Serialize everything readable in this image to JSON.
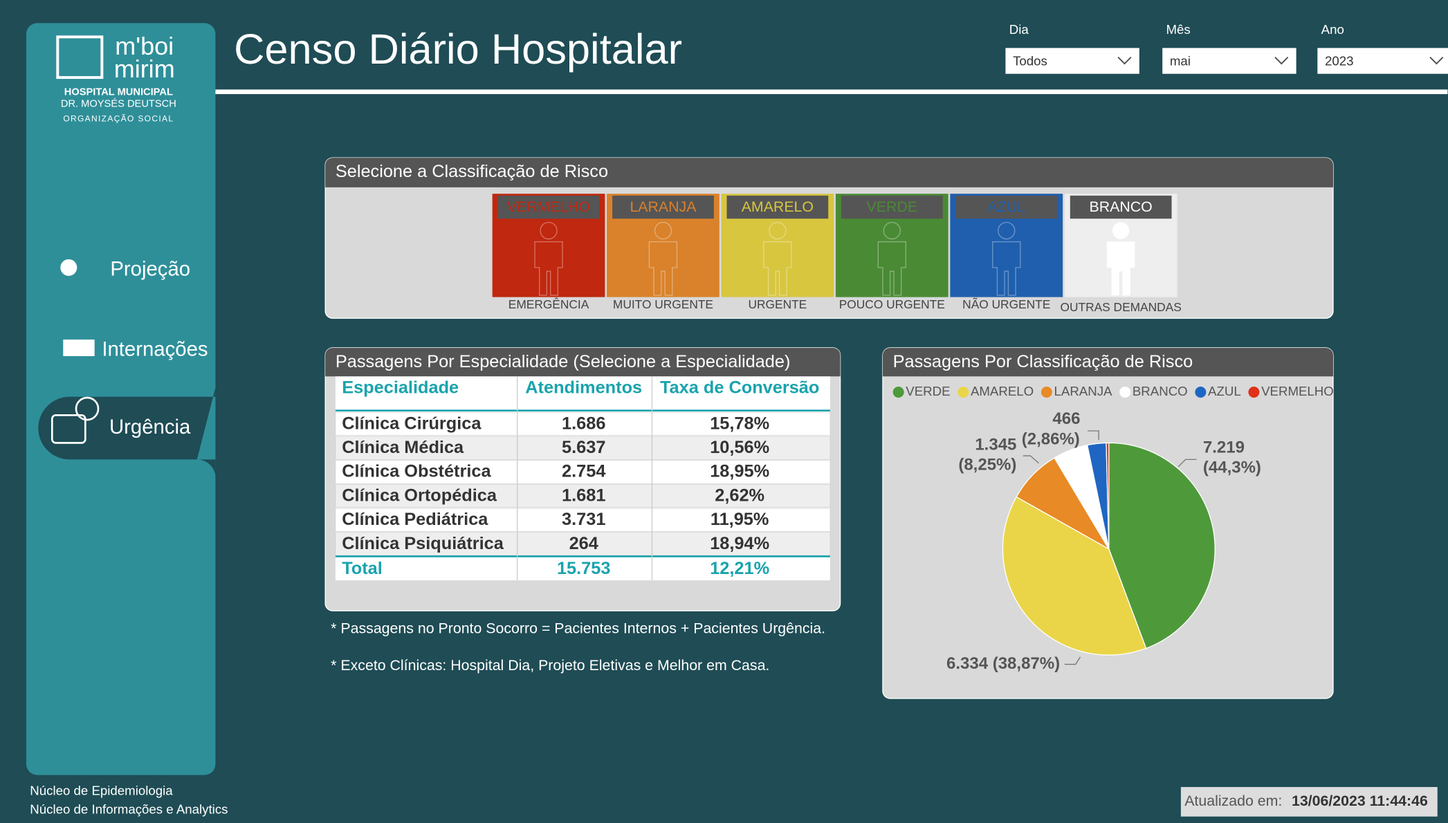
{
  "header": {
    "title": "Censo Diário Hospitalar"
  },
  "filters": [
    {
      "label": "Dia",
      "value": "Todos"
    },
    {
      "label": "Mês",
      "value": "mai"
    },
    {
      "label": "Ano",
      "value": "2023"
    }
  ],
  "sidebar": {
    "logo": [
      "m'boi",
      "mirim",
      "HOSPITAL MUNICIPAL",
      "DR. MOYSÉS DEUTSCH",
      "ORGANIZAÇÃO SOCIAL"
    ],
    "nav": [
      "Projeção",
      "Internações",
      "Urgência"
    ],
    "footer": [
      "Núcleo de Epidemiologia",
      "Núcleo de Informações e Analytics"
    ]
  },
  "risk_selector": {
    "title": "Selecione a Classificação de Risco",
    "items": [
      {
        "label": "VERMELHO",
        "description": "EMERGÊNCIA",
        "color": "#c0280f"
      },
      {
        "label": "LARANJA",
        "description": "MUITO URGENTE",
        "color": "#d9822b"
      },
      {
        "label": "AMARELO",
        "description": "URGENTE",
        "color": "#d8c63f"
      },
      {
        "label": "VERDE",
        "description": "POUCO URGENTE",
        "color": "#4a8a35"
      },
      {
        "label": "AZUL",
        "description": "NÃO URGENTE",
        "color": "#1f5fae"
      },
      {
        "label": "BRANCO",
        "description": "OUTRAS DEMANDAS",
        "color": "#eeeeee"
      }
    ]
  },
  "table": {
    "title": "Passagens Por Especialidade (Selecione a Especialidade)",
    "columns": [
      "Especialidade",
      "Atendimentos",
      "Taxa de Conversão"
    ],
    "rows": [
      [
        "Clínica Cirúrgica",
        "1.686",
        "15,78%"
      ],
      [
        "Clínica Médica",
        "5.637",
        "10,56%"
      ],
      [
        "Clínica Obstétrica",
        "2.754",
        "18,95%"
      ],
      [
        "Clínica Ortopédica",
        "1.681",
        "2,62%"
      ],
      [
        "Clínica Pediátrica",
        "3.731",
        "11,95%"
      ],
      [
        "Clínica Psiquiátrica",
        "264",
        "18,94%"
      ]
    ],
    "total": [
      "Total",
      "15.753",
      "12,21%"
    ]
  },
  "notes": [
    "* Passagens no Pronto Socorro = Pacientes Internos + Pacientes Urgência.",
    "* Exceto Clínicas: Hospital Dia, Projeto Eletivas e Melhor em Casa."
  ],
  "chart_data": {
    "type": "pie",
    "title": "Passagens Por Classificação de Risco",
    "categories": [
      "VERDE",
      "AMARELO",
      "LARANJA",
      "BRANCO",
      "AZUL",
      "VERMELHO"
    ],
    "values": [
      7219,
      6334,
      1345,
      867,
      466,
      65
    ],
    "value_labels": [
      "7.219 (44,3%)",
      "6.334 (38,87%)",
      "1.345 (8,25%)",
      null,
      "466 (2,86%)",
      null
    ],
    "colors": [
      "#4e9a3a",
      "#ead548",
      "#e88a25",
      "#ffffff",
      "#1f66c2",
      "#e0321a"
    ],
    "legend": "top-left"
  },
  "update": {
    "label": "Atualizado em:",
    "value": "13/06/2023 11:44:46"
  }
}
